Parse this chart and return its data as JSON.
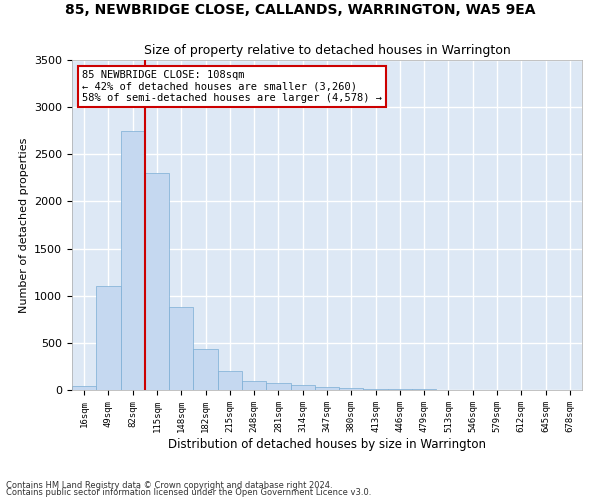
{
  "title": "85, NEWBRIDGE CLOSE, CALLANDS, WARRINGTON, WA5 9EA",
  "subtitle": "Size of property relative to detached houses in Warrington",
  "xlabel": "Distribution of detached houses by size in Warrington",
  "ylabel": "Number of detached properties",
  "bar_color": "#c5d8f0",
  "bar_edge_color": "#7aadd4",
  "background_color": "#dde8f5",
  "grid_color": "#ffffff",
  "fig_background": "#ffffff",
  "categories": [
    "16sqm",
    "49sqm",
    "82sqm",
    "115sqm",
    "148sqm",
    "182sqm",
    "215sqm",
    "248sqm",
    "281sqm",
    "314sqm",
    "347sqm",
    "380sqm",
    "413sqm",
    "446sqm",
    "479sqm",
    "513sqm",
    "546sqm",
    "579sqm",
    "612sqm",
    "645sqm",
    "678sqm"
  ],
  "values": [
    45,
    1100,
    2750,
    2300,
    880,
    430,
    200,
    100,
    75,
    55,
    30,
    20,
    15,
    10,
    8,
    5,
    5,
    3,
    2,
    2,
    1
  ],
  "ylim": [
    0,
    3500
  ],
  "yticks": [
    0,
    500,
    1000,
    1500,
    2000,
    2500,
    3000,
    3500
  ],
  "property_line_x": 2.5,
  "annotation_text": "85 NEWBRIDGE CLOSE: 108sqm\n← 42% of detached houses are smaller (3,260)\n58% of semi-detached houses are larger (4,578) →",
  "annotation_box_color": "#ffffff",
  "annotation_box_edge_color": "#cc0000",
  "property_line_color": "#cc0000",
  "footnote1": "Contains HM Land Registry data © Crown copyright and database right 2024.",
  "footnote2": "Contains public sector information licensed under the Open Government Licence v3.0."
}
